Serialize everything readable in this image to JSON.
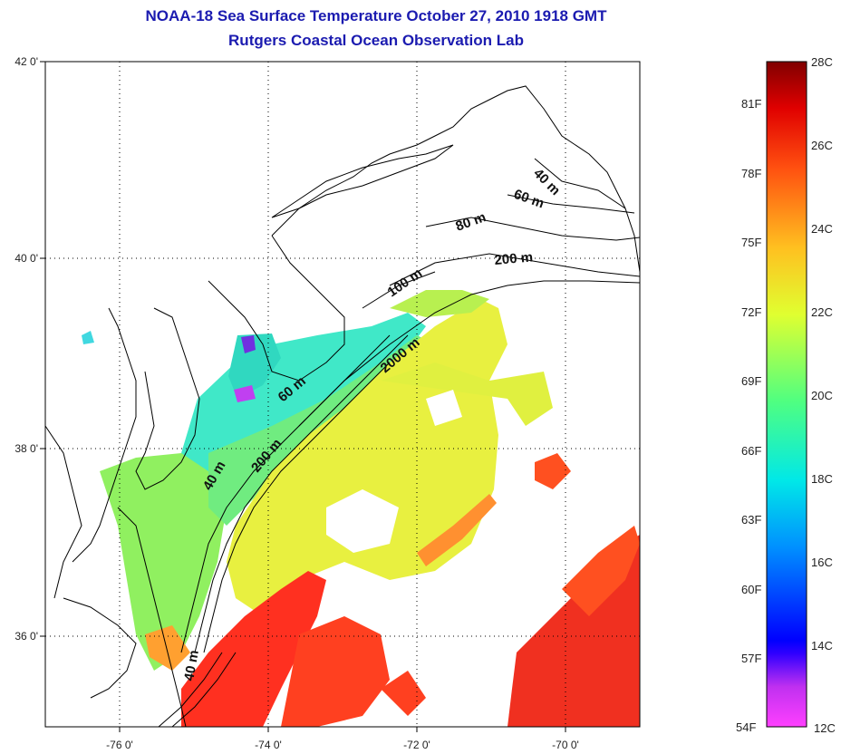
{
  "title": {
    "line1": "NOAA-18 Sea Surface Temperature October 27, 2010 1918 GMT",
    "line2": "Rutgers Coastal Ocean Observation Lab"
  },
  "axes": {
    "latitude_ticks": [
      "42 0'",
      "40 0'",
      "38 0'",
      "36 0'"
    ],
    "longitude_ticks": [
      "-76 0'",
      "-74 0'",
      "-72 0'",
      "-70 0'"
    ]
  },
  "isobath_labels": [
    "40 m",
    "60 m",
    "80 m",
    "200 m",
    "100 m",
    "2000 m",
    "60 m",
    "200 m",
    "40 m",
    "40 m"
  ],
  "colorbar": {
    "fahrenheit_labels": [
      "81F",
      "78F",
      "75F",
      "72F",
      "69F",
      "66F",
      "63F",
      "60F",
      "57F",
      "54F"
    ],
    "celsius_labels": [
      "28C",
      "26C",
      "24C",
      "22C",
      "20C",
      "18C",
      "16C",
      "14C",
      "12C"
    ],
    "colors": [
      "#ff40ff",
      "#8020d0",
      "#0000ff",
      "#0090ff",
      "#00e8e8",
      "#40ff90",
      "#d8ff30",
      "#ffe020",
      "#ff9010",
      "#ff4010",
      "#e00000",
      "#800000"
    ]
  },
  "map_colors": {
    "cool_shelf": "#40e8c8",
    "mid_shelf": "#90f060",
    "slope": "#e8f040",
    "warm_gulfstream": "#ff3020",
    "very_warm": "#e00010",
    "coast": "#000000"
  }
}
